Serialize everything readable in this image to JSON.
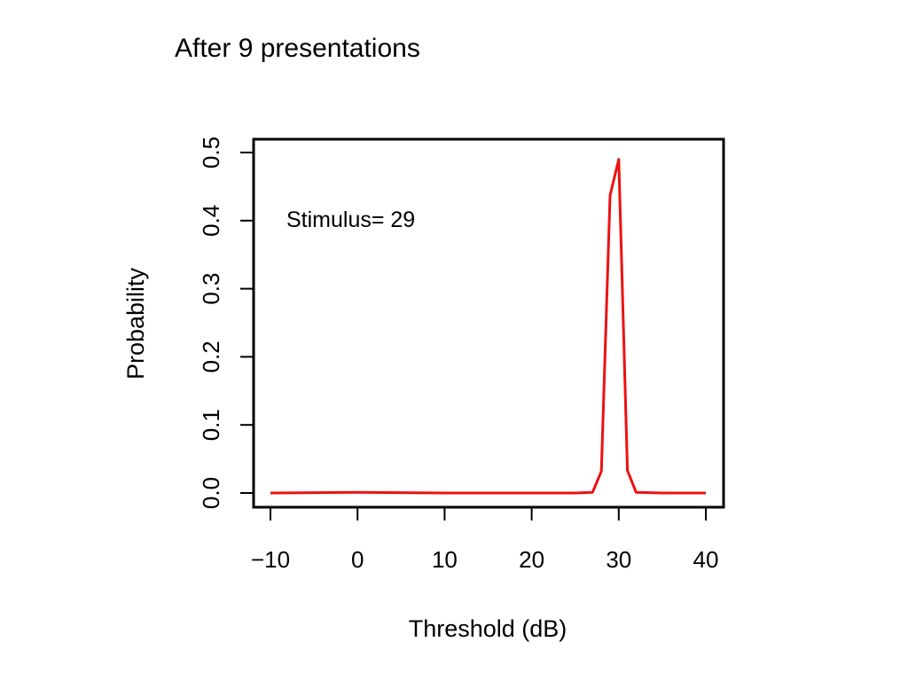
{
  "slide": {
    "title": "After 9 presentations"
  },
  "chart_data": {
    "type": "line",
    "title": "",
    "xlabel": "Threshold (dB)",
    "ylabel": "Probability",
    "xlim": [
      -10,
      40
    ],
    "ylim": [
      0,
      0.5
    ],
    "x_ticks": [
      -10,
      0,
      10,
      20,
      30,
      40
    ],
    "x_tick_labels": [
      "−10",
      "0",
      "10",
      "20",
      "30",
      "40"
    ],
    "y_ticks": [
      0.0,
      0.1,
      0.2,
      0.3,
      0.4,
      0.5
    ],
    "y_tick_labels": [
      "0.0",
      "0.1",
      "0.2",
      "0.3",
      "0.4",
      "0.5"
    ],
    "grid": false,
    "annotation": "Stimulus= 29",
    "series": [
      {
        "color": "#ee1111",
        "x": [
          -10,
          -5,
          0,
          5,
          10,
          15,
          20,
          25,
          27,
          28,
          29,
          30,
          31,
          32,
          35,
          40
        ],
        "y": [
          0.0,
          0.0005,
          0.001,
          0.0005,
          0.0,
          0.0,
          0.0,
          0.0,
          0.001,
          0.032,
          0.437,
          0.49,
          0.033,
          0.001,
          0.0,
          0.0
        ]
      }
    ]
  }
}
